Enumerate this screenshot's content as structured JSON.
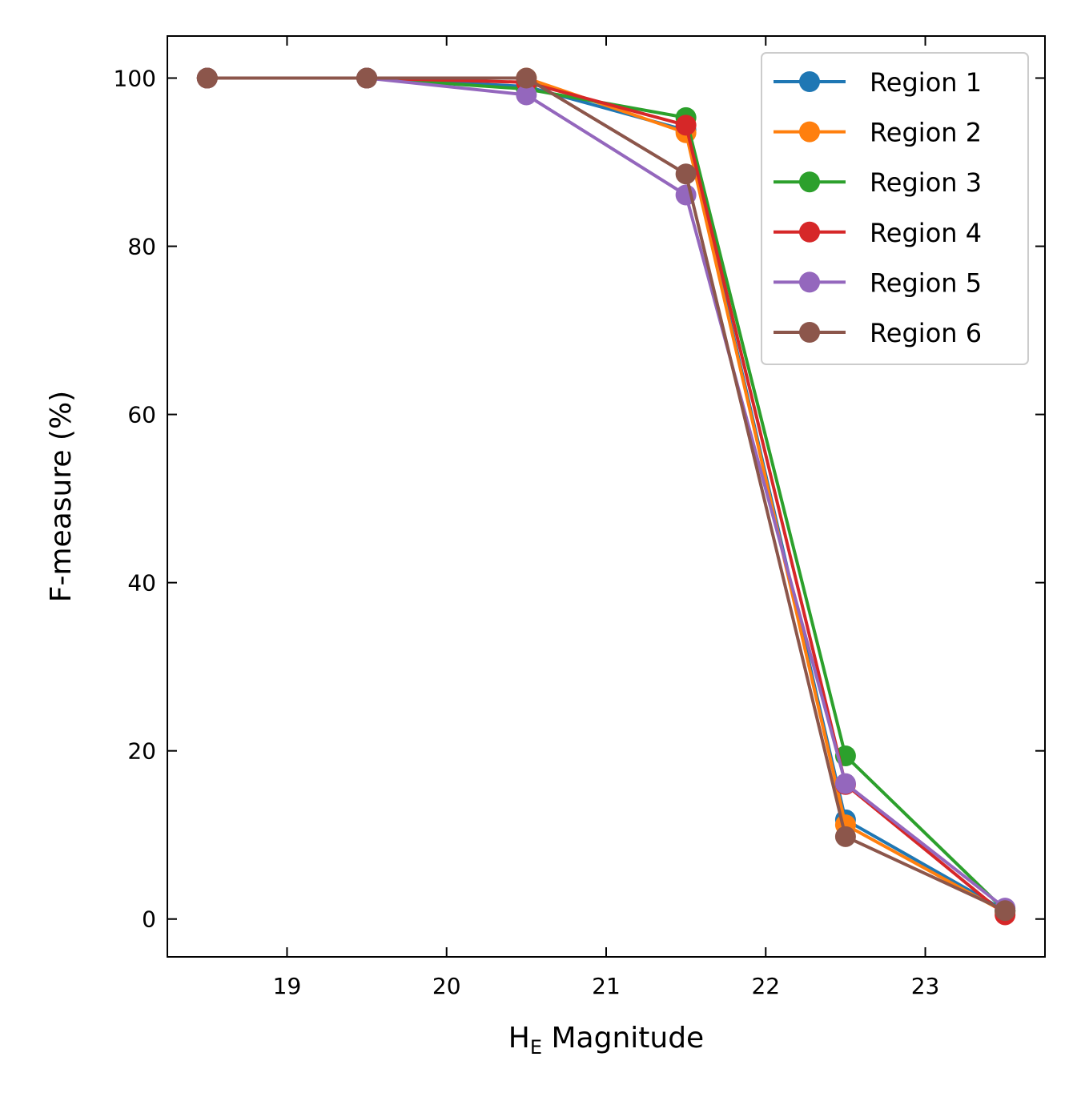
{
  "chart_data": {
    "type": "line",
    "title": "",
    "xlabel_main": "H",
    "xlabel_sub": "E",
    "xlabel_rest": " Magnitude",
    "ylabel": "F-measure (%)",
    "xlim": [
      18.25,
      23.75
    ],
    "ylim": [
      -4.5,
      105
    ],
    "x_ticks": [
      19,
      20,
      21,
      22,
      23
    ],
    "x_tick_labels": [
      "19",
      "20",
      "21",
      "22",
      "23"
    ],
    "y_ticks": [
      0,
      20,
      40,
      60,
      80,
      100
    ],
    "y_tick_labels": [
      "0",
      "20",
      "40",
      "60",
      "80",
      "100"
    ],
    "legend_position": "top-right",
    "x": [
      18.5,
      19.5,
      20.5,
      21.5,
      22.5,
      23.5
    ],
    "series": [
      {
        "name": "Region 1",
        "color": "#1f77b4",
        "values": [
          100,
          100,
          99.0,
          93.8,
          11.8,
          1.0
        ]
      },
      {
        "name": "Region 2",
        "color": "#ff7f0e",
        "values": [
          100,
          100,
          100,
          93.5,
          11.2,
          0.8
        ]
      },
      {
        "name": "Region 3",
        "color": "#2ca02c",
        "values": [
          100,
          100,
          98.7,
          95.3,
          19.4,
          1.0
        ]
      },
      {
        "name": "Region 4",
        "color": "#d62728",
        "values": [
          100,
          100,
          99.5,
          94.4,
          16.0,
          0.5
        ]
      },
      {
        "name": "Region 5",
        "color": "#9467bd",
        "values": [
          100,
          100,
          98.0,
          86.1,
          16.1,
          1.3
        ]
      },
      {
        "name": "Region 6",
        "color": "#8c564b",
        "values": [
          100,
          100,
          100,
          88.6,
          9.8,
          1.0
        ]
      }
    ]
  }
}
